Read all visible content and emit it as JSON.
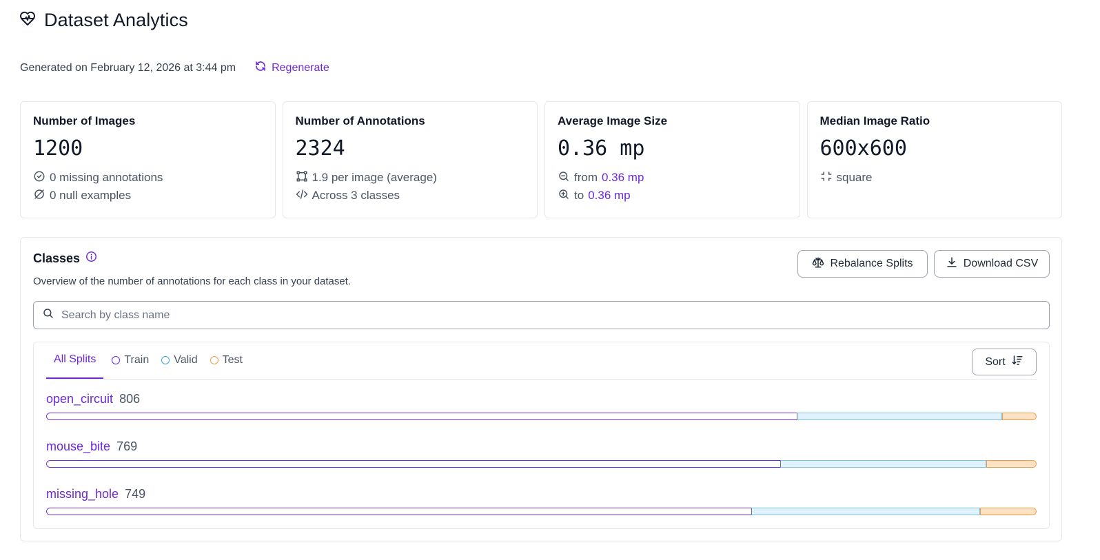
{
  "header": {
    "title": "Dataset Analytics",
    "icon": "heart-pulse-icon"
  },
  "subline": {
    "generated": "Generated on February 12, 2026 at 3:44 pm",
    "regenerate_label": "Regenerate"
  },
  "cards": {
    "images": {
      "title": "Number of Images",
      "value": "1200",
      "line1": "0 missing annotations",
      "line2": "0 null examples"
    },
    "annotations": {
      "title": "Number of Annotations",
      "value": "2324",
      "line1": "1.9 per image (average)",
      "line2": "Across 3 classes"
    },
    "size": {
      "title": "Average Image Size",
      "value": "0.36 mp",
      "from_prefix": "from",
      "from_value": "0.36 mp",
      "to_prefix": "to",
      "to_value": "0.36 mp"
    },
    "ratio": {
      "title": "Median Image Ratio",
      "value": "600x600",
      "line1": "square"
    }
  },
  "classes": {
    "title": "Classes",
    "description": "Overview of the number of annotations for each class in your dataset.",
    "rebalance_label": "Rebalance Splits",
    "download_label": "Download CSV",
    "search_placeholder": "Search by class name",
    "tabs": [
      "All Splits",
      "Train",
      "Valid",
      "Test"
    ],
    "sort_label": "Sort",
    "colors": {
      "accent": "#6d28d9",
      "train": "#6d28d9",
      "valid": "#7cc3e0",
      "test": "#f2994a"
    },
    "rows": [
      {
        "name": "open_circuit",
        "count": "806",
        "train": 0.758,
        "valid": 0.207,
        "test": 0.035
      },
      {
        "name": "mouse_bite",
        "count": "769",
        "train": 0.741,
        "valid": 0.208,
        "test": 0.051
      },
      {
        "name": "missing_hole",
        "count": "749",
        "train": 0.712,
        "valid": 0.231,
        "test": 0.057
      }
    ]
  }
}
